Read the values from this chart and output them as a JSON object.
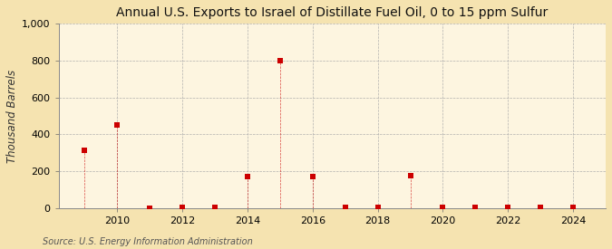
{
  "title": "Annual U.S. Exports to Israel of Distillate Fuel Oil, 0 to 15 ppm Sulfur",
  "ylabel": "Thousand Barrels",
  "source": "Source: U.S. Energy Information Administration",
  "background_color": "#f5e3b0",
  "plot_background_color": "#fdf5e0",
  "x_data": [
    2009,
    2010,
    2011,
    2012,
    2013,
    2014,
    2015,
    2016,
    2017,
    2018,
    2019,
    2020,
    2021,
    2022,
    2023,
    2024
  ],
  "y_data": [
    313,
    450,
    1,
    2,
    5,
    170,
    800,
    170,
    5,
    4,
    175,
    4,
    5,
    5,
    5,
    5
  ],
  "marker_color": "#cc0000",
  "marker_size": 4,
  "ylim": [
    0,
    1000
  ],
  "yticks": [
    0,
    200,
    400,
    600,
    800,
    1000
  ],
  "xlim": [
    2008.2,
    2025.0
  ],
  "xticks": [
    2010,
    2012,
    2014,
    2016,
    2018,
    2020,
    2022,
    2024
  ],
  "title_fontsize": 10,
  "ylabel_fontsize": 8.5,
  "tick_fontsize": 8,
  "source_fontsize": 7
}
